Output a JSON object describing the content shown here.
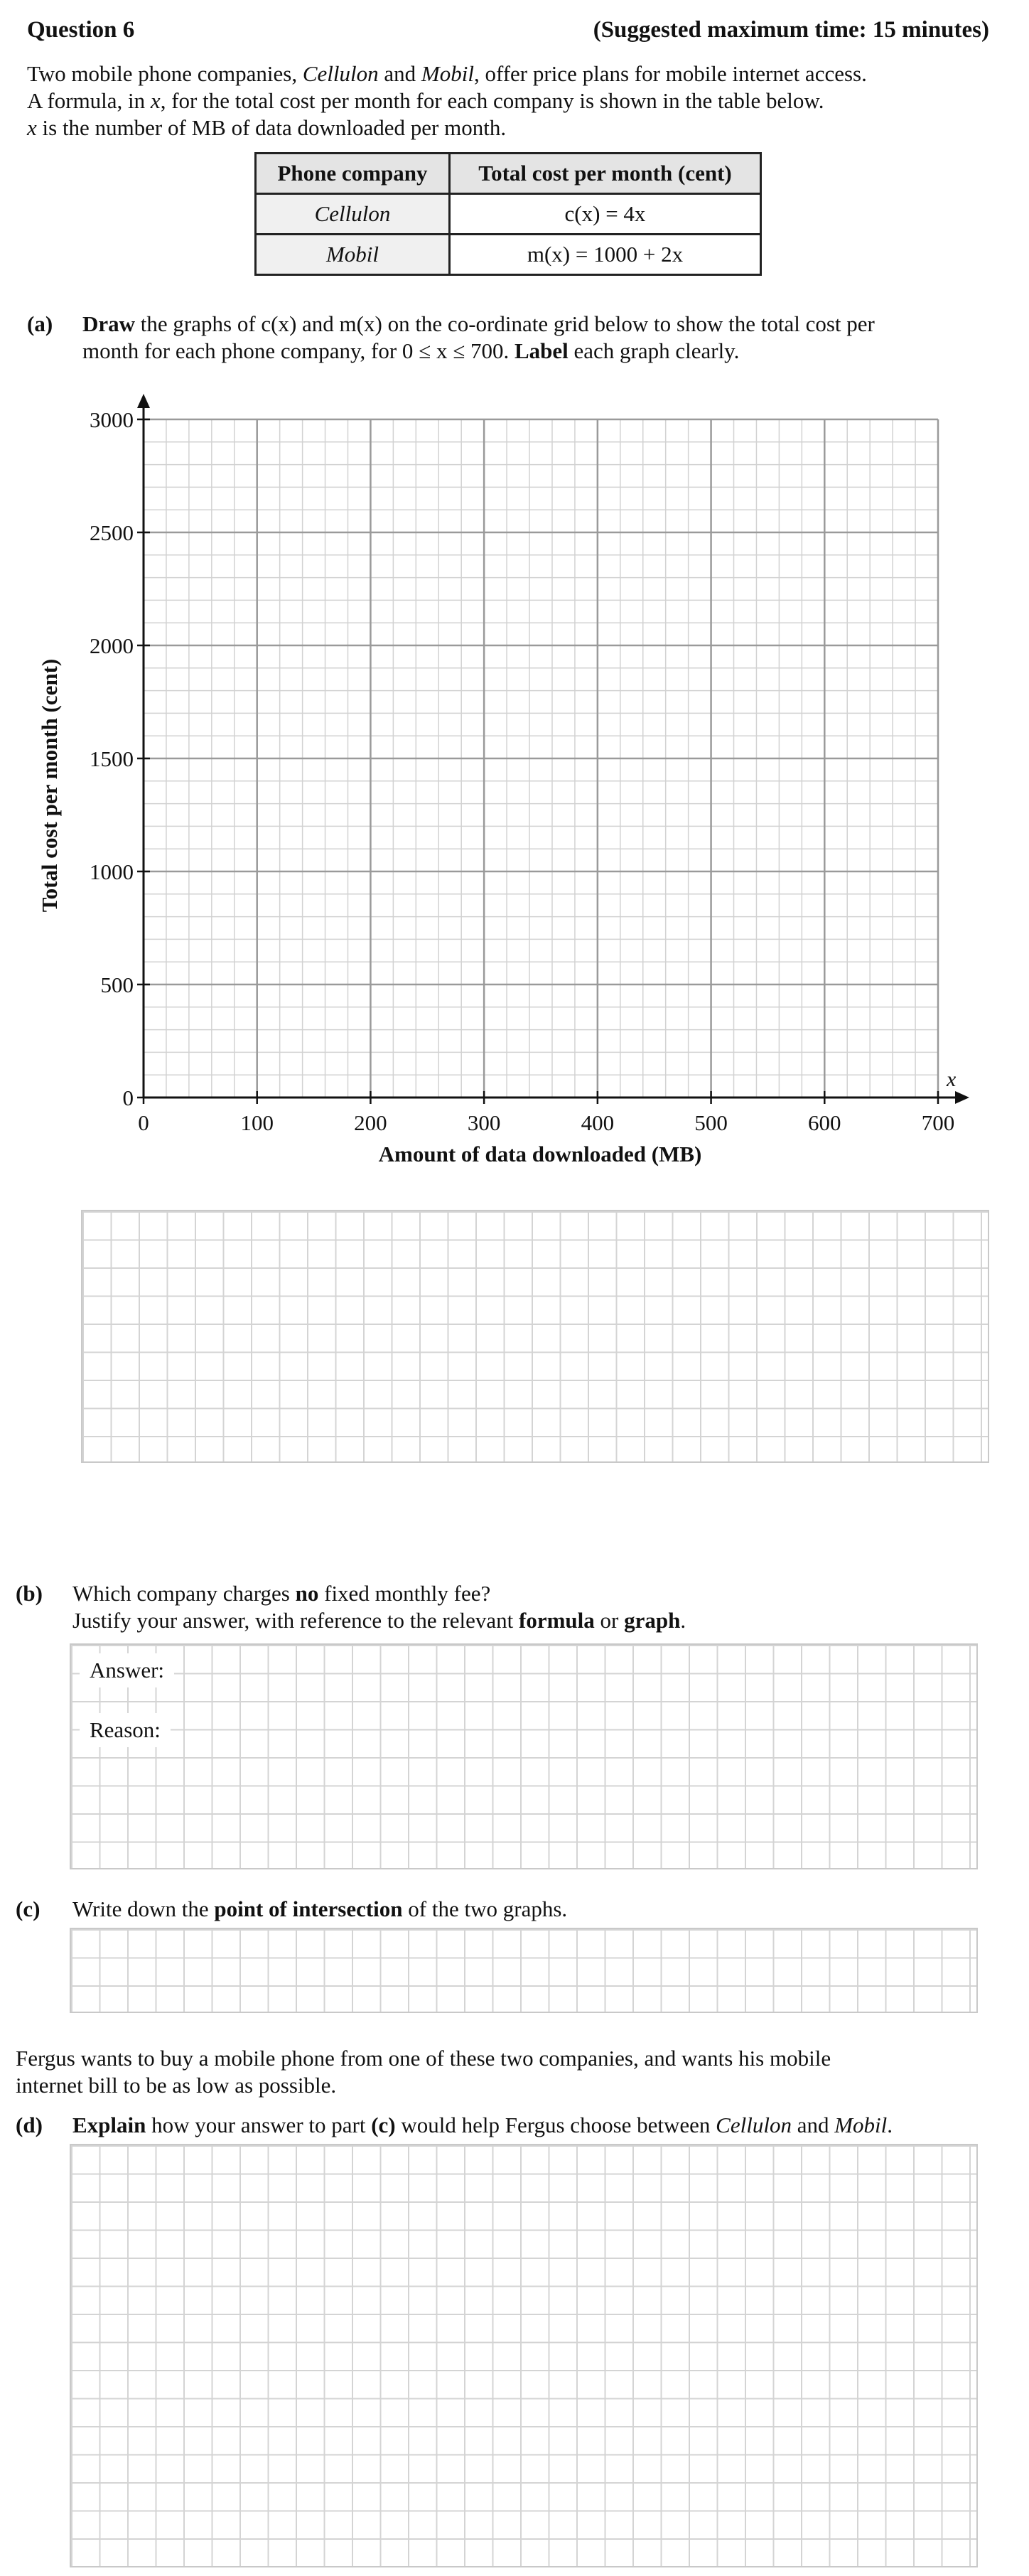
{
  "header": {
    "question_title": "Question 6",
    "time_note": "(Suggested maximum time: 15 minutes)"
  },
  "intro": {
    "line1_a": "Two mobile phone companies, ",
    "company1": "Cellulon",
    "line1_b": " and ",
    "company2": "Mobil",
    "line1_c": ", offer price plans for mobile internet access.",
    "line2_a": "A formula, in ",
    "line2_var": "x",
    "line2_b": ", for the total cost per month for each company is shown in the table below.",
    "line3_var": "x",
    "line3_b": " is the number of MB of data downloaded per month."
  },
  "table": {
    "headers": [
      "Phone company",
      "Total cost per month (cent)"
    ],
    "rows": [
      {
        "company": "Cellulon",
        "formula": "c(x)  =  4x"
      },
      {
        "company": "Mobil",
        "formula": "m(x)  =  1000 + 2x"
      }
    ]
  },
  "part_a": {
    "label": "(a)",
    "bold1": "Draw",
    "text1": " the graphs of c(x) and m(x) on the co-ordinate grid below to show the total cost per",
    "text2a": "month for each phone company, for 0 ≤ x ≤ 700.  ",
    "bold2": "Label",
    "text2b": " each graph clearly."
  },
  "chart_data": {
    "type": "line",
    "title": "",
    "xlabel": "Amount of data downloaded (MB)",
    "ylabel": "Total cost per month (cent)",
    "x_axis_var": "x",
    "xlim": [
      0,
      700
    ],
    "ylim": [
      0,
      3000
    ],
    "x_ticks": [
      0,
      100,
      200,
      300,
      400,
      500,
      600,
      700
    ],
    "y_ticks": [
      0,
      500,
      1000,
      1500,
      2000,
      2500,
      3000
    ],
    "x_minor_step": 20,
    "y_minor_step": 100,
    "grid": true,
    "series": []
  },
  "part_b": {
    "label": "(b)",
    "text1a": "Which company charges ",
    "bold1": "no",
    "text1b": " fixed monthly fee?",
    "text2a": "Justify your answer, with reference to the relevant ",
    "bold2": "formula",
    "text2b": " or ",
    "bold3": "graph",
    "text2c": ".",
    "answer_label": "Answer:",
    "reason_label": "Reason:"
  },
  "part_c": {
    "label": "(c)",
    "text1a": "Write down the ",
    "bold1": "point of intersection",
    "text1b": " of the two graphs."
  },
  "fergus": {
    "line1": "Fergus wants to buy a mobile phone from one of these two companies, and wants his mobile",
    "line2": "internet bill to be as low as possible."
  },
  "part_d": {
    "label": "(d)",
    "bold1": "Explain",
    "text1a": " how your answer to part ",
    "bold2": "(c)",
    "text1b": " would help Fergus choose between ",
    "company1": "Cellulon",
    "text1c": " and ",
    "company2": "Mobil",
    "text1d": "."
  }
}
